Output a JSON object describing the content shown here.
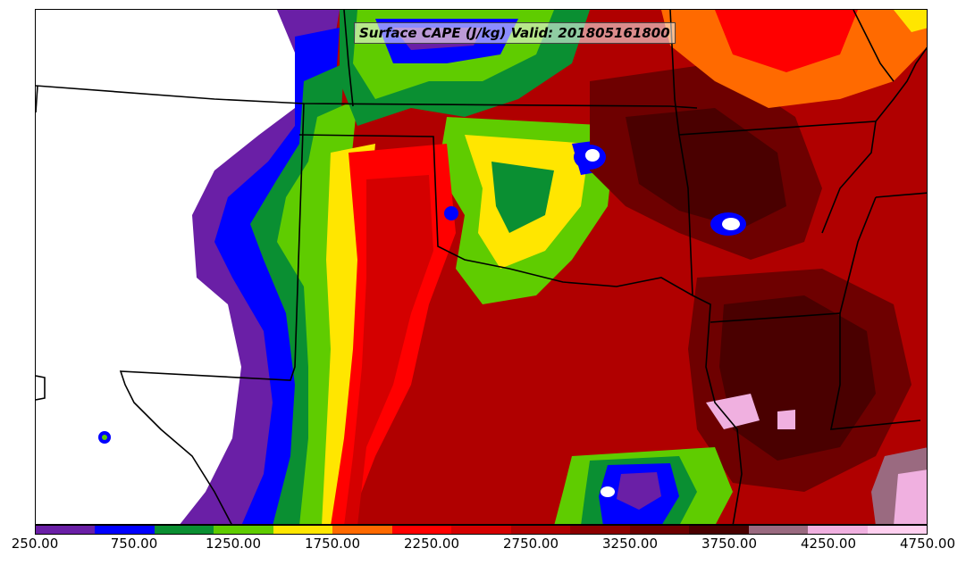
{
  "title": "Surface CAPE (J/kg) Valid: 201805161800",
  "colorbar": {
    "colors": [
      "#6a1fa6",
      "#0000ff",
      "#0a8f32",
      "#5fcc00",
      "#ffe600",
      "#ff6a00",
      "#ff0000",
      "#d40000",
      "#b00000",
      "#8c0000",
      "#6e0000",
      "#4a0000",
      "#9a6a80",
      "#f0b0e0",
      "#ffd0f0"
    ],
    "tick_labels": [
      "250.00",
      "750.00",
      "1250.00",
      "1750.00",
      "2250.00",
      "2750.00",
      "3250.00",
      "3750.00",
      "4250.00",
      "4750.00"
    ],
    "range": [
      250,
      4750
    ]
  },
  "legend_colors": {
    "no_data": "#ffffff",
    "boundary": "#000000"
  }
}
